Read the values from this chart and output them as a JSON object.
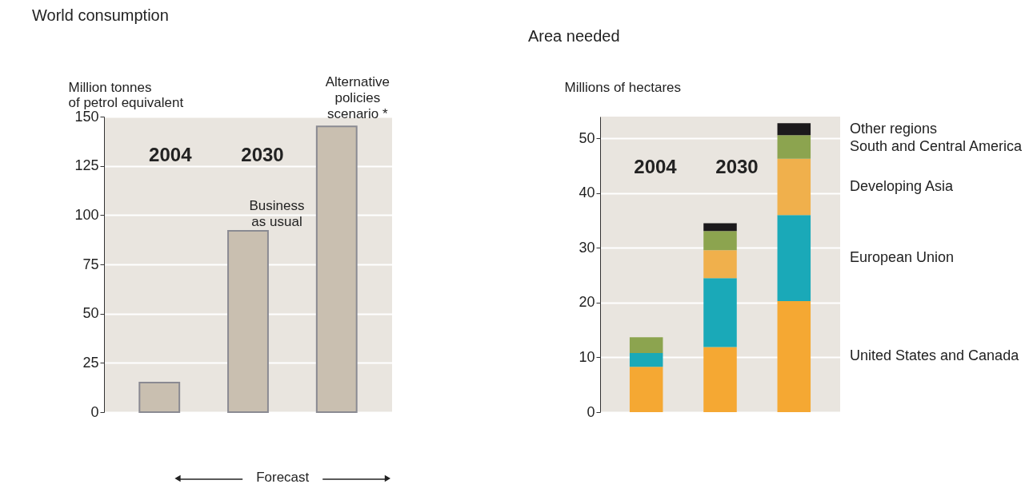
{
  "chart_data": [
    {
      "type": "bar",
      "title": "World consumption",
      "ylabel": "Million tonnes of petrol equivalent",
      "categories": [
        null,
        null,
        null
      ],
      "values": [
        15,
        92,
        145
      ],
      "color": "#c9bfb0",
      "ylim": [
        0,
        150
      ],
      "yticks": [
        0,
        25,
        50,
        75,
        100,
        125,
        150
      ],
      "grid": "y",
      "tick_labels": "y",
      "annotations": [
        "2004",
        "2030",
        "Business as usual",
        "Alternative policies scenario *",
        "Forecast"
      ]
    },
    {
      "type": "bar",
      "stacked": true,
      "title": "Area needed",
      "ylabel": "Millions of hectares",
      "categories": [
        null,
        null,
        null
      ],
      "ylim": [
        0,
        54
      ],
      "yticks": [
        0,
        10,
        20,
        30,
        40,
        50
      ],
      "grid": "y",
      "tick_labels": "y",
      "legend": "right",
      "series": [
        {
          "name": "United States and Canada",
          "color": "#f5a833",
          "values": [
            8.3,
            11.9,
            20.3
          ]
        },
        {
          "name": "European Union",
          "color": "#1aa9b8",
          "values": [
            2.5,
            12.6,
            15.7
          ]
        },
        {
          "name": "Developing Asia",
          "color": "#f0b04c",
          "values": [
            0,
            5.1,
            10.3
          ]
        },
        {
          "name": "South and Central America",
          "color": "#8ca44f",
          "values": [
            2.9,
            3.5,
            4.3
          ]
        },
        {
          "name": "Other regions",
          "color": "#1c1a1c",
          "values": [
            0,
            1.4,
            2.2
          ]
        }
      ],
      "annotations": [
        "2004",
        "2030"
      ]
    }
  ]
}
